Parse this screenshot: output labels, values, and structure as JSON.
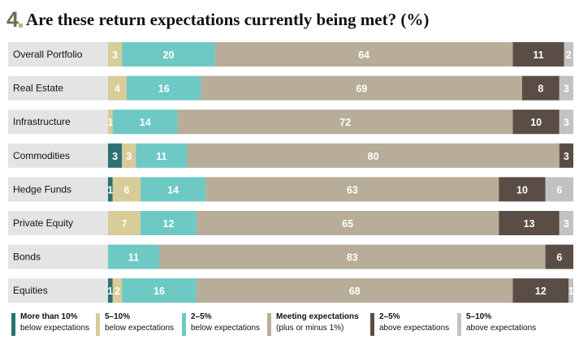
{
  "title_number": "4",
  "title_text": "Are these return expectations currently being met? (%)",
  "chart_data": {
    "type": "bar",
    "stacked": true,
    "orientation": "horizontal",
    "title": "Are these return expectations currently being met? (%)",
    "categories": [
      "Overall Portfolio",
      "Real Estate",
      "Infrastructure",
      "Commodities",
      "Hedge Funds",
      "Private Equity",
      "Bonds",
      "Equities"
    ],
    "series": [
      {
        "name": "More than 10% below expectations",
        "color": "#2d7272",
        "values": [
          0,
          0,
          0,
          3,
          1,
          0,
          0,
          1
        ]
      },
      {
        "name": "5–10% below expectations",
        "color": "#d8cc98",
        "values": [
          3,
          4,
          1,
          3,
          6,
          7,
          0,
          2
        ]
      },
      {
        "name": "2–5% below expectations",
        "color": "#6ec9c5",
        "values": [
          20,
          16,
          14,
          11,
          14,
          12,
          11,
          16
        ]
      },
      {
        "name": "Meeting expectations (plus or minus 1%)",
        "color": "#b8ad98",
        "values": [
          64,
          69,
          72,
          80,
          63,
          65,
          83,
          68
        ]
      },
      {
        "name": "2–5% above expectations",
        "color": "#594d45",
        "values": [
          11,
          8,
          10,
          3,
          10,
          13,
          6,
          12
        ]
      },
      {
        "name": "5–10% above expectations",
        "color": "#c2c2c2",
        "values": [
          2,
          3,
          3,
          0,
          6,
          3,
          0,
          1
        ]
      }
    ],
    "row_background": "#e4e4e4",
    "label_color": "#ffffff"
  },
  "legend": [
    {
      "line1": "More than 10%",
      "line2": "below expectations",
      "color": "#2d7272"
    },
    {
      "line1": "5–10%",
      "line2": "below expectations",
      "color": "#d8cc98"
    },
    {
      "line1": "2–5%",
      "line2": "below expectations",
      "color": "#6ec9c5"
    },
    {
      "line1": "Meeting expectations",
      "line2": "(plus or minus 1%)",
      "color": "#b8ad98"
    },
    {
      "line1": "2–5%",
      "line2": "above expectations",
      "color": "#594d45"
    },
    {
      "line1": "5–10%",
      "line2": "above expectations",
      "color": "#c2c2c2"
    }
  ]
}
